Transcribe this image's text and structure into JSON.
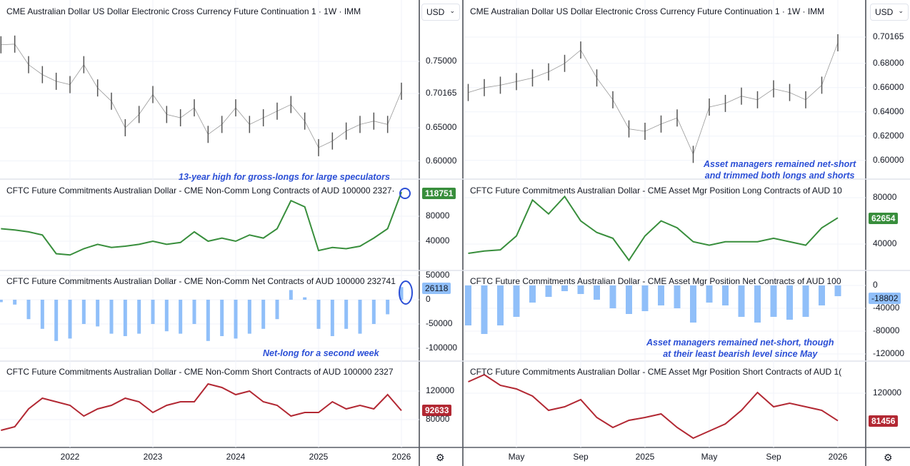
{
  "left": {
    "price_title": "CME Australian Dollar US Dollar Electronic Cross Currency Future Continuation 1 · 1W · IMM",
    "long_title": "CFTC Future Commitments Australian Dollar - CME Non-Comm Long Contracts of AUD 100000 2327·",
    "net_title": "CFTC Future Commitments Australian Dollar - CME Non-Comm Net Contracts of AUD 100000 232741",
    "short_title": "CFTC Future Commitments Australian Dollar - CME Non-Comm Short Contracts of AUD 100000 2327",
    "currency": "USD",
    "price_ticks": [
      "0.75000",
      "0.70165",
      "0.65000",
      "0.60000"
    ],
    "long_ticks": [
      "80000",
      "40000"
    ],
    "net_ticks": [
      "50000",
      "0",
      "-50000",
      "-100000"
    ],
    "short_ticks": [
      "120000",
      "80000"
    ],
    "long_last": "118751",
    "net_last": "26118",
    "short_last": "92633",
    "x_ticks": [
      "2022",
      "2023",
      "2024",
      "2025",
      "2026"
    ],
    "note_long": "13-year high for gross-longs for large speculators",
    "note_net": "Net-long for a second week"
  },
  "right": {
    "price_title": "CME Australian Dollar US Dollar Electronic Cross Currency Future Continuation 1 · 1W · IMM",
    "long_title": "CFTC Future Commitments Australian Dollar - CME Asset Mgr Position Long Contracts of AUD 10",
    "net_title": "CFTC Future Commitments Australian Dollar - CME Asset Mgr Position Net Contracts of AUD 100",
    "short_title": "CFTC Future Commitments Australian Dollar - CME Asset Mgr Position Short Contracts of AUD 1(",
    "currency": "USD",
    "price_ticks": [
      "0.70165",
      "0.68000",
      "0.66000",
      "0.64000",
      "0.62000",
      "0.60000"
    ],
    "long_ticks": [
      "80000",
      "40000"
    ],
    "net_ticks": [
      "0",
      "-40000",
      "-80000",
      "-120000"
    ],
    "short_ticks": [
      "120000"
    ],
    "long_last": "62654",
    "net_last": "-18802",
    "short_last": "81456",
    "x_ticks": [
      "May",
      "Sep",
      "2025",
      "May",
      "Sep",
      "2026"
    ],
    "note_price": "Asset managers remained net-short\nand trimmed both longs and shorts",
    "note_net": "Asset managers remained net-short, though\nat their least bearish level since May"
  },
  "colors": {
    "long": "#388e3c",
    "net": "#90bff9",
    "short": "#b22833",
    "price": "#555555",
    "annotation": "#2b4fd6"
  },
  "chart_data": [
    {
      "type": "line",
      "panel": "left",
      "x": [
        "2021-03",
        "2021-05",
        "2021-07",
        "2021-09",
        "2021-11",
        "2022-01",
        "2022-03",
        "2022-05",
        "2022-07",
        "2022-09",
        "2022-11",
        "2023-01",
        "2023-03",
        "2023-05",
        "2023-07",
        "2023-09",
        "2023-11",
        "2024-01",
        "2024-03",
        "2024-05",
        "2024-07",
        "2024-09",
        "2024-11",
        "2025-01",
        "2025-03",
        "2025-05",
        "2025-07",
        "2025-09",
        "2025-11",
        "2026-01"
      ],
      "series": [
        {
          "name": "price",
          "values": [
            0.775,
            0.776,
            0.745,
            0.73,
            0.72,
            0.715,
            0.745,
            0.71,
            0.69,
            0.65,
            0.67,
            0.7,
            0.67,
            0.665,
            0.68,
            0.64,
            0.655,
            0.68,
            0.655,
            0.665,
            0.675,
            0.685,
            0.66,
            0.62,
            0.63,
            0.645,
            0.655,
            0.66,
            0.655,
            0.705
          ]
        },
        {
          "name": "long",
          "values": [
            60000,
            58000,
            55000,
            50000,
            20000,
            18000,
            28000,
            35000,
            30000,
            32000,
            35000,
            40000,
            35000,
            38000,
            55000,
            40000,
            45000,
            40000,
            50000,
            45000,
            60000,
            105000,
            95000,
            25000,
            30000,
            28000,
            32000,
            45000,
            60000,
            118751
          ]
        },
        {
          "name": "net",
          "values": [
            -5000,
            -10000,
            -40000,
            -60000,
            -85000,
            -80000,
            -50000,
            -55000,
            -70000,
            -75000,
            -70000,
            -50000,
            -65000,
            -70000,
            -50000,
            -85000,
            -75000,
            -80000,
            -70000,
            -60000,
            -40000,
            20000,
            5000,
            -60000,
            -75000,
            -60000,
            -70000,
            -50000,
            -30000,
            26118
          ]
        },
        {
          "name": "short",
          "values": [
            65000,
            70000,
            95000,
            110000,
            105000,
            100000,
            85000,
            95000,
            100000,
            110000,
            105000,
            90000,
            100000,
            105000,
            105000,
            130000,
            125000,
            115000,
            120000,
            105000,
            100000,
            85000,
            90000,
            90000,
            105000,
            95000,
            100000,
            95000,
            115000,
            92633
          ]
        }
      ]
    },
    {
      "type": "line",
      "panel": "right",
      "x": [
        "2024-02",
        "2024-03",
        "2024-04",
        "2024-05",
        "2024-06",
        "2024-07",
        "2024-08",
        "2024-09",
        "2024-10",
        "2024-11",
        "2024-12",
        "2025-01",
        "2025-02",
        "2025-03",
        "2025-04",
        "2025-05",
        "2025-06",
        "2025-07",
        "2025-08",
        "2025-09",
        "2025-10",
        "2025-11",
        "2025-12",
        "2026-01"
      ],
      "series": [
        {
          "name": "price",
          "values": [
            0.656,
            0.66,
            0.662,
            0.665,
            0.668,
            0.673,
            0.68,
            0.691,
            0.668,
            0.65,
            0.626,
            0.624,
            0.63,
            0.635,
            0.605,
            0.644,
            0.647,
            0.653,
            0.65,
            0.659,
            0.656,
            0.65,
            0.662,
            0.697
          ]
        },
        {
          "name": "long",
          "values": [
            32000,
            34000,
            35000,
            47000,
            78000,
            66000,
            81000,
            60000,
            50000,
            45000,
            26000,
            47000,
            60000,
            54000,
            42000,
            39000,
            42000,
            42000,
            42000,
            45000,
            42000,
            39000,
            54000,
            62654
          ]
        },
        {
          "name": "net",
          "values": [
            -70000,
            -85000,
            -70000,
            -55000,
            -30000,
            -20000,
            -10000,
            -15000,
            -25000,
            -40000,
            -50000,
            -45000,
            -35000,
            -40000,
            -65000,
            -30000,
            -35000,
            -55000,
            -65000,
            -55000,
            -60000,
            -55000,
            -35000,
            -18802
          ]
        },
        {
          "name": "short",
          "values": [
            136000,
            146000,
            131000,
            126000,
            116000,
            96000,
            101000,
            111000,
            86000,
            72000,
            82000,
            86000,
            91000,
            72000,
            57000,
            67000,
            77000,
            96000,
            121000,
            101000,
            106000,
            101000,
            96000,
            81456
          ]
        }
      ]
    }
  ]
}
